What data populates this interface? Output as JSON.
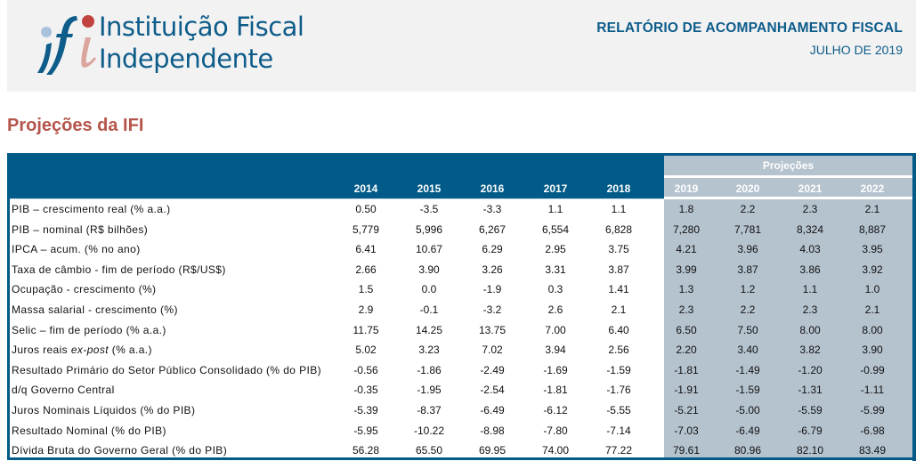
{
  "header": {
    "org_name_line1": "Instituição Fiscal",
    "org_name_line2": "Independente",
    "logo_icon": "ifi-logo",
    "report_title": "RELATÓRIO DE ACOMPANHAMENTO FISCAL",
    "report_date": "JULHO DE 2019"
  },
  "section": {
    "title": "Projeções da IFI"
  },
  "table": {
    "projections_label": "Projeções",
    "years": [
      "2014",
      "2015",
      "2016",
      "2017",
      "2018",
      "2019",
      "2020",
      "2021",
      "2022"
    ],
    "rows": [
      {
        "label": "PIB – crescimento real (% a.a.)",
        "values": [
          "0.50",
          "-3.5",
          "-3.3",
          "1.1",
          "1.1",
          "1.8",
          "2.2",
          "2.3",
          "2.1"
        ]
      },
      {
        "label": "PIB – nominal (R$ bilhões)",
        "values": [
          "5,779",
          "5,996",
          "6,267",
          "6,554",
          "6,828",
          "7,280",
          "7,781",
          "8,324",
          "8,887"
        ]
      },
      {
        "label": "IPCA – acum. (% no ano)",
        "values": [
          "6.41",
          "10.67",
          "6.29",
          "2.95",
          "3.75",
          "4.21",
          "3.96",
          "4.03",
          "3.95"
        ]
      },
      {
        "label": "Taxa de câmbio - fim de período (R$/US$)",
        "values": [
          "2.66",
          "3.90",
          "3.26",
          "3.31",
          "3.87",
          "3.99",
          "3.87",
          "3.86",
          "3.92"
        ]
      },
      {
        "label": "Ocupação - crescimento (%)",
        "values": [
          "1.5",
          "0.0",
          "-1.9",
          "0.3",
          "1.41",
          "1.3",
          "1.2",
          "1.1",
          "1.0"
        ]
      },
      {
        "label": "Massa salarial - crescimento (%)",
        "values": [
          "2.9",
          "-0.1",
          "-3.2",
          "2.6",
          "2.1",
          "2.3",
          "2.2",
          "2.3",
          "2.1"
        ]
      },
      {
        "label": "Selic – fim de período (% a.a.)",
        "values": [
          "11.75",
          "14.25",
          "13.75",
          "7.00",
          "6.40",
          "6.50",
          "7.50",
          "8.00",
          "8.00"
        ]
      },
      {
        "label_pre": "Juros reais ",
        "label_italic": "ex-post",
        "label_post": " (% a.a.)",
        "values": [
          "5.02",
          "3.23",
          "7.02",
          "3.94",
          "2.56",
          "2.20",
          "3.40",
          "3.82",
          "3.90"
        ]
      },
      {
        "label": "Resultado Primário do Setor Público Consolidado (% do PIB)",
        "values": [
          "-0.56",
          "-1.86",
          "-2.49",
          "-1.69",
          "-1.59",
          "-1.81",
          "-1.49",
          "-1.20",
          "-0.99"
        ]
      },
      {
        "label": "d/q Governo Central",
        "values": [
          "-0.35",
          "-1.95",
          "-2.54",
          "-1.81",
          "-1.76",
          "-1.91",
          "-1.59",
          "-1.31",
          "-1.11"
        ]
      },
      {
        "label": "Juros Nominais Líquidos (% do PIB)",
        "values": [
          "-5.39",
          "-8.37",
          "-6.49",
          "-6.12",
          "-5.55",
          "-5.21",
          "-5.00",
          "-5.59",
          "-5.99"
        ]
      },
      {
        "label": "Resultado Nominal (% do PIB)",
        "values": [
          "-5.95",
          "-10.22",
          "-8.98",
          "-7.80",
          "-7.14",
          "-7.03",
          "-6.49",
          "-6.79",
          "-6.98"
        ]
      },
      {
        "label": "Dívida Bruta do Governo Geral (% do PIB)",
        "values": [
          "56.28",
          "65.50",
          "69.95",
          "74.00",
          "77.22",
          "79.61",
          "80.96",
          "82.10",
          "83.49"
        ]
      }
    ]
  },
  "colors": {
    "brand_blue": "#015a87",
    "title_red": "#b5554b",
    "projection_panel": "#b5c3cf"
  }
}
